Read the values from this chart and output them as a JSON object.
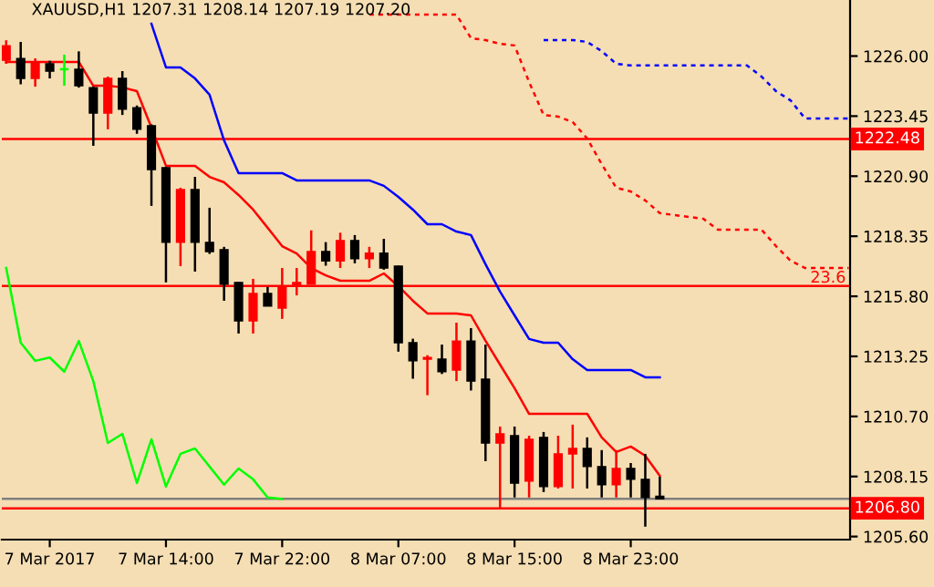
{
  "chart_data": {
    "type": "candlestick",
    "title": "XAUUSD,H1 1207.31 1208.14 1207.19 1207.20",
    "categories": [
      null,
      null,
      null,
      "7 Mar 2017",
      null,
      null,
      null,
      null,
      null,
      null,
      null,
      "7 Mar 14:00",
      null,
      null,
      null,
      null,
      null,
      null,
      null,
      "7 Mar 22:00",
      null,
      null,
      null,
      null,
      null,
      null,
      null,
      "8 Mar 07:00",
      null,
      null,
      null,
      null,
      null,
      null,
      null,
      "8 Mar 15:00",
      null,
      null,
      null,
      null,
      null,
      null,
      null,
      "8 Mar 23:00",
      null,
      null,
      null,
      null,
      null,
      null,
      null,
      null,
      null,
      null,
      null,
      null,
      null,
      null,
      null
    ],
    "ohlc": [
      [
        1225.82,
        1226.67,
        1225.67,
        1226.44
      ],
      [
        1225.9,
        1226.6,
        1224.8,
        1225.05
      ],
      [
        1225.05,
        1225.9,
        1224.7,
        1225.75
      ],
      [
        1225.67,
        1225.8,
        1225.05,
        1225.36
      ],
      [
        1225.44,
        1226.06,
        1224.74,
        1225.44
      ],
      [
        1225.44,
        1226.2,
        1224.66,
        1224.74
      ],
      [
        1224.66,
        1224.7,
        1222.19,
        1223.58
      ],
      [
        1223.58,
        1225.13,
        1222.89,
        1225.05
      ],
      [
        1225.05,
        1225.36,
        1223.5,
        1223.74
      ],
      [
        1223.81,
        1223.9,
        1222.7,
        1222.89
      ],
      [
        1223.04,
        1223.1,
        1219.64,
        1221.18
      ],
      [
        1221.26,
        1221.3,
        1216.39,
        1218.09
      ],
      [
        1218.09,
        1220.41,
        1217.08,
        1220.33
      ],
      [
        1220.33,
        1220.87,
        1216.85,
        1218.09
      ],
      [
        1218.09,
        1219.56,
        1217.6,
        1217.7
      ],
      [
        1217.78,
        1217.9,
        1215.61,
        1216.31
      ],
      [
        1216.39,
        1216.4,
        1214.22,
        1214.76
      ],
      [
        1214.76,
        1216.54,
        1214.22,
        1215.92
      ],
      [
        1215.92,
        1216.2,
        1215.38,
        1215.38
      ],
      [
        1215.3,
        1217.0,
        1214.84,
        1216.23
      ],
      [
        1216.23,
        1217.0,
        1215.84,
        1216.39
      ],
      [
        1216.31,
        1218.6,
        1216.31,
        1217.7
      ],
      [
        1217.7,
        1218.1,
        1217.1,
        1217.3
      ],
      [
        1217.3,
        1218.5,
        1217.0,
        1218.17
      ],
      [
        1218.17,
        1218.4,
        1217.2,
        1217.4
      ],
      [
        1217.4,
        1217.9,
        1217.0,
        1217.63
      ],
      [
        1217.63,
        1218.24,
        1216.93,
        1217.0
      ],
      [
        1217.08,
        1217.1,
        1213.45,
        1213.83
      ],
      [
        1213.83,
        1214.0,
        1212.3,
        1213.06
      ],
      [
        1213.13,
        1213.3,
        1211.6,
        1213.2
      ],
      [
        1213.13,
        1213.75,
        1212.5,
        1212.6
      ],
      [
        1212.67,
        1214.68,
        1212.2,
        1213.9
      ],
      [
        1213.9,
        1214.45,
        1211.8,
        1212.2
      ],
      [
        1212.28,
        1213.75,
        1208.8,
        1209.57
      ],
      [
        1209.57,
        1210.27,
        1206.8,
        1209.96
      ],
      [
        1209.88,
        1210.27,
        1207.26,
        1207.87
      ],
      [
        1207.95,
        1209.88,
        1207.26,
        1209.73
      ],
      [
        1209.81,
        1210.04,
        1207.49,
        1207.72
      ],
      [
        1207.72,
        1209.88,
        1207.64,
        1209.11
      ],
      [
        1209.11,
        1210.35,
        1207.64,
        1209.34
      ],
      [
        1209.34,
        1209.81,
        1207.64,
        1208.57
      ],
      [
        1208.57,
        1209.27,
        1207.26,
        1207.8
      ],
      [
        1207.8,
        1209.27,
        1207.26,
        1208.49
      ],
      [
        1208.49,
        1208.72,
        1207.26,
        1208.03
      ],
      [
        1208.03,
        1209.11,
        1206.02,
        1207.26
      ],
      [
        1207.31,
        1208.14,
        1207.19,
        1207.2
      ],
      null,
      null,
      null,
      null,
      null,
      null,
      null,
      null,
      null,
      null,
      null,
      null,
      null
    ],
    "colors": [
      "#ff0000",
      "#000000",
      "#ff0000",
      "#000000",
      "#00ff00",
      "#000000",
      "#000000",
      "#ff0000",
      "#000000",
      "#000000",
      "#000000",
      "#000000",
      "#ff0000",
      "#000000",
      "#000000",
      "#000000",
      "#000000",
      "#ff0000",
      "#000000",
      "#ff0000",
      "#ff0000",
      "#ff0000",
      "#000000",
      "#ff0000",
      "#000000",
      "#ff0000",
      "#000000",
      "#000000",
      "#000000",
      "#ff0000",
      "#000000",
      "#ff0000",
      "#000000",
      "#000000",
      "#ff0000",
      "#000000",
      "#ff0000",
      "#000000",
      "#ff0000",
      "#ff0000",
      "#000000",
      "#000000",
      "#ff0000",
      "#000000",
      "#000000",
      "#000000",
      null,
      null,
      null,
      null,
      null,
      null,
      null,
      null,
      null,
      null,
      null,
      null,
      null
    ],
    "series": [
      {
        "type": "line",
        "color": "#ff0000",
        "line_style": "solid",
        "values": [
          1225.75,
          1225.75,
          1225.75,
          1225.75,
          1225.75,
          1225.75,
          1224.74,
          1224.74,
          1224.67,
          1224.51,
          1222.96,
          1221.34,
          1221.34,
          1221.34,
          1220.87,
          1220.64,
          1220.1,
          1219.48,
          1218.71,
          1217.93,
          1217.62,
          1217.0,
          1216.69,
          1216.46,
          1216.46,
          1216.46,
          1216.77,
          1216.23,
          1215.61,
          1215.07,
          1215.07,
          1215.07,
          1214.99,
          1213.91,
          1212.9,
          1211.9,
          1210.81,
          1210.81,
          1210.81,
          1210.81,
          1210.81,
          1209.81,
          1209.19,
          1209.42,
          1209.03,
          1208.18,
          null,
          null,
          null,
          null,
          null,
          null,
          null,
          null,
          null,
          null,
          null,
          null,
          null
        ]
      },
      {
        "type": "line",
        "color": "#0000ff",
        "line_style": "solid",
        "values": [
          null,
          null,
          null,
          null,
          null,
          null,
          null,
          null,
          null,
          null,
          1227.37,
          1225.52,
          1225.52,
          1225.05,
          1224.36,
          1222.42,
          1221.03,
          1221.03,
          1221.03,
          1221.03,
          1220.72,
          1220.72,
          1220.72,
          1220.72,
          1220.72,
          1220.72,
          1220.49,
          1220.02,
          1219.48,
          1218.86,
          1218.86,
          1218.55,
          1218.4,
          1217.16,
          1216.0,
          1214.99,
          1213.99,
          1213.83,
          1213.83,
          1213.13,
          1212.67,
          1212.67,
          1212.67,
          1212.67,
          1212.36,
          1212.36,
          null,
          null,
          null,
          null,
          null,
          null,
          null,
          null,
          null,
          null,
          null,
          null,
          null
        ]
      },
      {
        "type": "line",
        "color": "#00ff00",
        "line_style": "solid",
        "values": [
          1217.0,
          1213.83,
          1213.06,
          1213.2,
          1212.6,
          1213.9,
          1212.2,
          1209.57,
          1209.96,
          1207.87,
          1209.73,
          1207.72,
          1209.11,
          1209.34,
          1208.57,
          1207.8,
          1208.49,
          1208.03,
          1207.26,
          1207.2,
          null,
          null,
          null,
          null,
          null,
          null,
          null,
          null,
          null,
          null,
          null,
          null,
          null,
          null,
          null,
          null,
          null,
          null,
          null,
          null,
          null,
          null,
          null,
          null,
          null,
          null,
          null,
          null,
          null,
          null,
          null,
          null,
          null,
          null,
          null,
          null,
          null,
          null,
          null
        ]
      },
      {
        "type": "line",
        "color": "#0000ff",
        "line_style": "dashed",
        "values": [
          null,
          null,
          null,
          null,
          null,
          null,
          null,
          null,
          null,
          null,
          null,
          null,
          null,
          null,
          null,
          null,
          null,
          null,
          null,
          null,
          null,
          null,
          null,
          null,
          null,
          null,
          null,
          null,
          null,
          null,
          null,
          null,
          null,
          null,
          null,
          null,
          null,
          1226.68,
          1226.68,
          1226.68,
          1226.6,
          1226.21,
          1225.67,
          1225.6,
          1225.6,
          1225.6,
          1225.6,
          1225.6,
          1225.6,
          1225.6,
          1225.6,
          1225.6,
          1225.13,
          1224.51,
          1224.12,
          1223.35,
          1223.35,
          1223.35,
          1223.35
        ]
      },
      {
        "type": "line",
        "color": "#ff0000",
        "line_style": "dashed",
        "values": [
          null,
          null,
          null,
          null,
          null,
          null,
          null,
          null,
          null,
          null,
          null,
          null,
          null,
          null,
          null,
          null,
          null,
          null,
          null,
          null,
          null,
          null,
          null,
          null,
          null,
          1227.76,
          1227.76,
          1227.76,
          1227.76,
          1227.76,
          1227.76,
          1227.76,
          1226.76,
          1226.68,
          1226.52,
          1226.45,
          1224.9,
          1223.5,
          1223.43,
          1223.2,
          1222.5,
          1221.41,
          1220.41,
          1220.25,
          1219.87,
          1219.33,
          1219.25,
          1219.17,
          1219.09,
          1218.63,
          1218.63,
          1218.63,
          1218.63,
          1217.93,
          1217.31,
          1217.0,
          1217.0,
          1217.0,
          1217.0
        ]
      }
    ],
    "ylim": [
      1205.47,
      1228.38
    ],
    "yticks": [
      {
        "value": 1226.0,
        "label": "1226.00"
      },
      {
        "value": 1223.45,
        "label": "1223.45"
      },
      {
        "value": 1220.9,
        "label": "1220.90"
      },
      {
        "value": 1218.35,
        "label": "1218.35"
      },
      {
        "value": 1215.8,
        "label": "1215.80"
      },
      {
        "value": 1213.25,
        "label": "1213.25"
      },
      {
        "value": 1210.7,
        "label": "1210.70"
      },
      {
        "value": 1208.15,
        "label": "1208.15"
      },
      {
        "value": 1205.6,
        "label": "1205.60"
      }
    ],
    "ref_lines": [
      {
        "axis": "y",
        "value": 1222.48,
        "label": "1222.48",
        "color": "#ff0000"
      },
      {
        "axis": "y",
        "value": 1216.24,
        "color": "#ff0000"
      },
      {
        "axis": "y",
        "value": 1207.2,
        "color": "#808080"
      },
      {
        "axis": "y",
        "value": 1206.8,
        "label": "1206.80",
        "color": "#ff0000"
      }
    ],
    "annotations": [
      {
        "text": "23.6",
        "y": 1216.24
      }
    ],
    "grid": false,
    "legend": false,
    "marker": "none"
  }
}
